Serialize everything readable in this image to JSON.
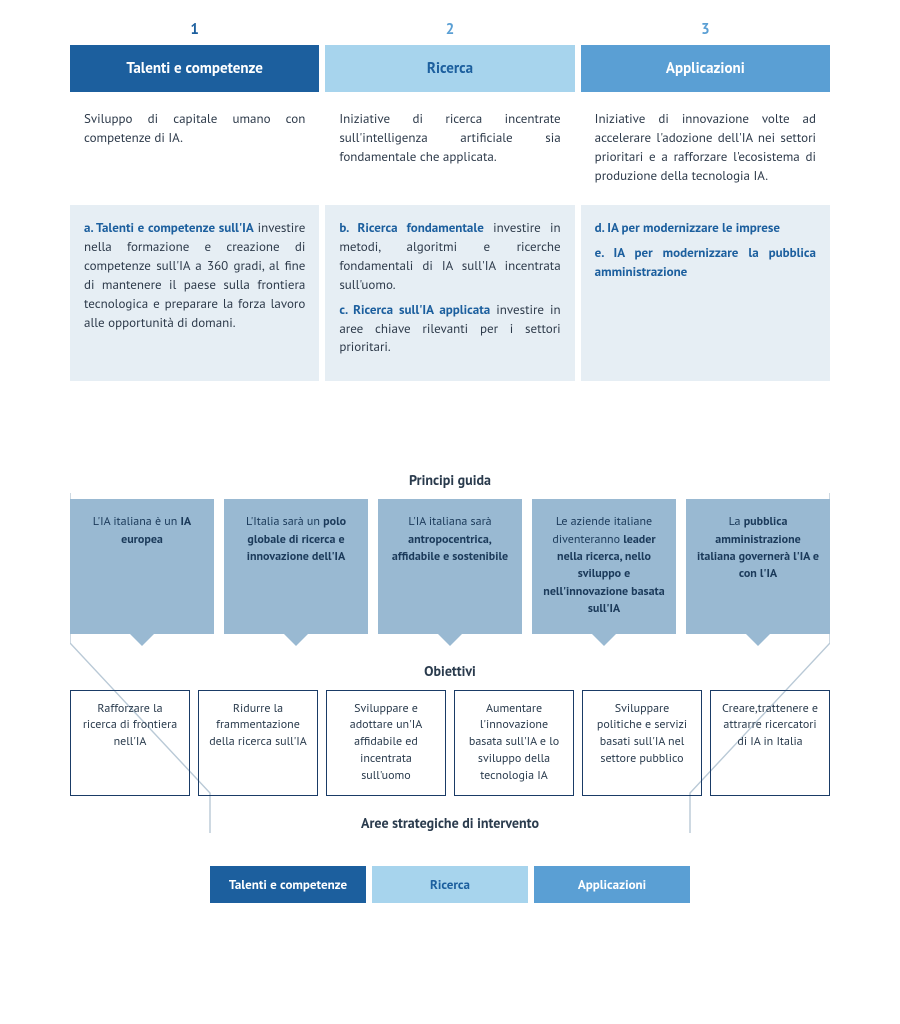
{
  "colors": {
    "dark_blue": "#1c5f9e",
    "mid_blue": "#5a9fd4",
    "light_blue": "#a7d4ed",
    "pale_blue_bg": "#e6eef4",
    "principle_bg": "#99b9d2",
    "principle_text": "#1b3a5a",
    "objective_border": "#1a3b66",
    "funnel_line": "#b9c9d6",
    "text_dark": "#2d3a4a",
    "white": "#ffffff",
    "num_colors": [
      "#1c5f9e",
      "#5a9fd4",
      "#5a9fd4"
    ]
  },
  "top": {
    "columns": [
      {
        "num": "1",
        "title": "Talenti e competenze",
        "head_bg": "#1c5f9e",
        "desc": "Sviluppo di capitale umano con competenze di IA.",
        "details": [
          {
            "title": "a. Talenti e competenze sull'IA",
            "body": "investire nella formazione e creazione di competenze sull'IA a 360 gradi, al fine di mantenere il paese sulla frontiera tecnologica e preparare la forza lavoro alle opportunità di domani."
          }
        ],
        "title_color": "#1c5f9e"
      },
      {
        "num": "2",
        "title": "Ricerca",
        "head_bg": "#a7d4ed",
        "head_text": "#1c5f9e",
        "desc": "Iniziative di ricerca incentrate sull'intelligenza artificiale sia fondamentale che applicata.",
        "details": [
          {
            "title": "b. Ricerca fondamentale",
            "body": "investire in metodi, algoritmi e ricerche fondamentali di IA sull'IA incentrata sull'uomo."
          },
          {
            "title": "c. Ricerca sull'IA applicata",
            "body": "investire in aree chiave rilevanti per i settori prioritari."
          }
        ],
        "title_color": "#1c5f9e"
      },
      {
        "num": "3",
        "title": "Applicazioni",
        "head_bg": "#5a9fd4",
        "desc": "Iniziative di innovazione volte ad accelerare l'adozione dell'IA nei settori prioritari e a rafforzare l'ecosistema di produzione della tecnologia IA.",
        "details": [
          {
            "title": "d. IA per modernizzare le imprese",
            "body": ""
          },
          {
            "title": "e. IA per modernizzare la pubblica amministrazione",
            "body": ""
          }
        ],
        "title_color": "#1c5f9e"
      }
    ]
  },
  "principles": {
    "title": "Principi guida",
    "items": [
      {
        "html": "L'IA italiana è un <strong>IA europea</strong>"
      },
      {
        "html": "L'Italia sarà un <strong>polo globale di ricerca e innovazione dell'IA</strong>"
      },
      {
        "html": "L'IA italiana sarà <strong>antropocentrica, affidabile e sostenibile</strong>"
      },
      {
        "html": "Le aziende italiane diventeranno <strong>leader nella ricerca, nello sviluppo e nell'innovazione basata sull'IA</strong>"
      },
      {
        "html": "La <strong>pubblica amministrazione italiana governerà l'IA e con l'IA</strong>"
      }
    ],
    "card_bg": "#99b9d2",
    "card_text": "#1b3a5a",
    "arrow_color": "#99b9d2"
  },
  "objectives": {
    "title": "Obiettivi",
    "items": [
      "Rafforzare la ricerca di frontiera nell'IA",
      "Ridurre la frammentazione della ricerca sull'IA",
      "Sviluppare e adottare un'IA affidabile ed incentrata sull'uomo",
      "Aumentare l'innovazione basata sull'IA e lo sviluppo della tecnologia IA",
      "Sviluppare politiche e servizi basati sull'IA nel settore pubblico",
      "Creare,trattenere e attrarre ricercatori di IA in Italia"
    ]
  },
  "aree": {
    "title": "Aree strategiche di intervento",
    "items": [
      {
        "label": "Talenti e competenze",
        "bg": "#1c5f9e",
        "text": "#ffffff"
      },
      {
        "label": "Ricerca",
        "bg": "#a7d4ed",
        "text": "#1c5f9e"
      },
      {
        "label": "Applicazioni",
        "bg": "#5a9fd4",
        "text": "#ffffff"
      }
    ]
  }
}
